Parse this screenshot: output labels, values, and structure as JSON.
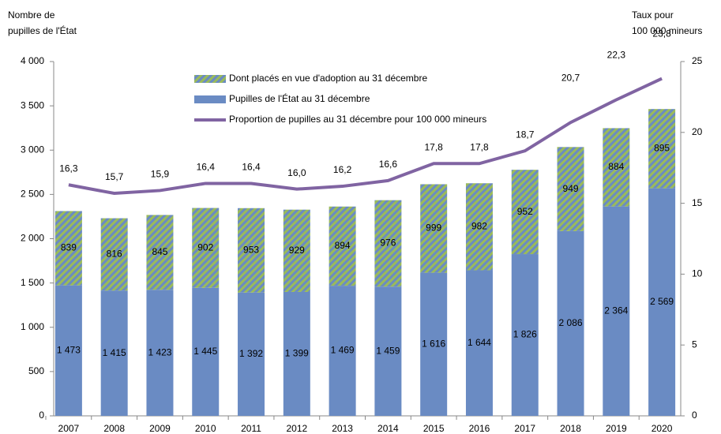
{
  "chart_data": {
    "type": "bar",
    "y_label": [
      "Nombre de",
      "pupilles de l'État"
    ],
    "y2_label": [
      "Taux pour",
      "100 000 mineurs"
    ],
    "categories": [
      "2007",
      "2008",
      "2009",
      "2010",
      "2011",
      "2012",
      "2013",
      "2014",
      "2015",
      "2016",
      "2017",
      "2018",
      "2019",
      "2020"
    ],
    "stacked": true,
    "series": [
      {
        "name": "Pupilles de l'État au 31 décembre",
        "color": "#6a8bc3",
        "values": [
          1473,
          1415,
          1423,
          1445,
          1392,
          1399,
          1469,
          1459,
          1616,
          1644,
          1826,
          2086,
          2364,
          2569
        ],
        "value_labels": [
          "1 473",
          "1 415",
          "1 423",
          "1 445",
          "1 392",
          "1 399",
          "1 469",
          "1 459",
          "1 616",
          "1 644",
          "1 826",
          "2 086",
          "2 364",
          "2 569"
        ]
      },
      {
        "name": "Dont placés en vue d'adoption au 31 décembre",
        "color": "#9bbb59",
        "values": [
          839,
          816,
          845,
          902,
          953,
          929,
          894,
          976,
          999,
          982,
          952,
          949,
          884,
          895
        ]
      },
      {
        "name": "Proportion de pupilles au 31 décembre pour 100 000 mineurs",
        "color": "#8064a2",
        "type": "line",
        "axis": "y2",
        "values": [
          16.3,
          15.7,
          15.9,
          16.4,
          16.4,
          16.0,
          16.2,
          16.6,
          17.8,
          17.8,
          18.7,
          20.7,
          22.3,
          23.8
        ],
        "value_labels": [
          "16,3",
          "15,7",
          "15,9",
          "16,4",
          "16,4",
          "16,0",
          "16,2",
          "16,6",
          "17,8",
          "17,8",
          "18,7",
          "20,7",
          "22,3",
          "23,8"
        ]
      }
    ],
    "ylim": [
      0,
      4000
    ],
    "yticks": [
      0,
      500,
      {
        "value": 1000,
        "label": "1 000"
      },
      {
        "value": 1500,
        "label": "1 500"
      },
      {
        "value": 2000,
        "label": "2 000"
      },
      {
        "value": 2500,
        "label": "2 500"
      },
      {
        "value": 3000,
        "label": "3 000"
      },
      {
        "value": 3500,
        "label": "3 500"
      },
      {
        "value": 4000,
        "label": "4 000"
      }
    ],
    "y2lim": [
      0,
      25
    ],
    "y2ticks": [
      0,
      5,
      10,
      15,
      20,
      25
    ],
    "legend": "top"
  }
}
